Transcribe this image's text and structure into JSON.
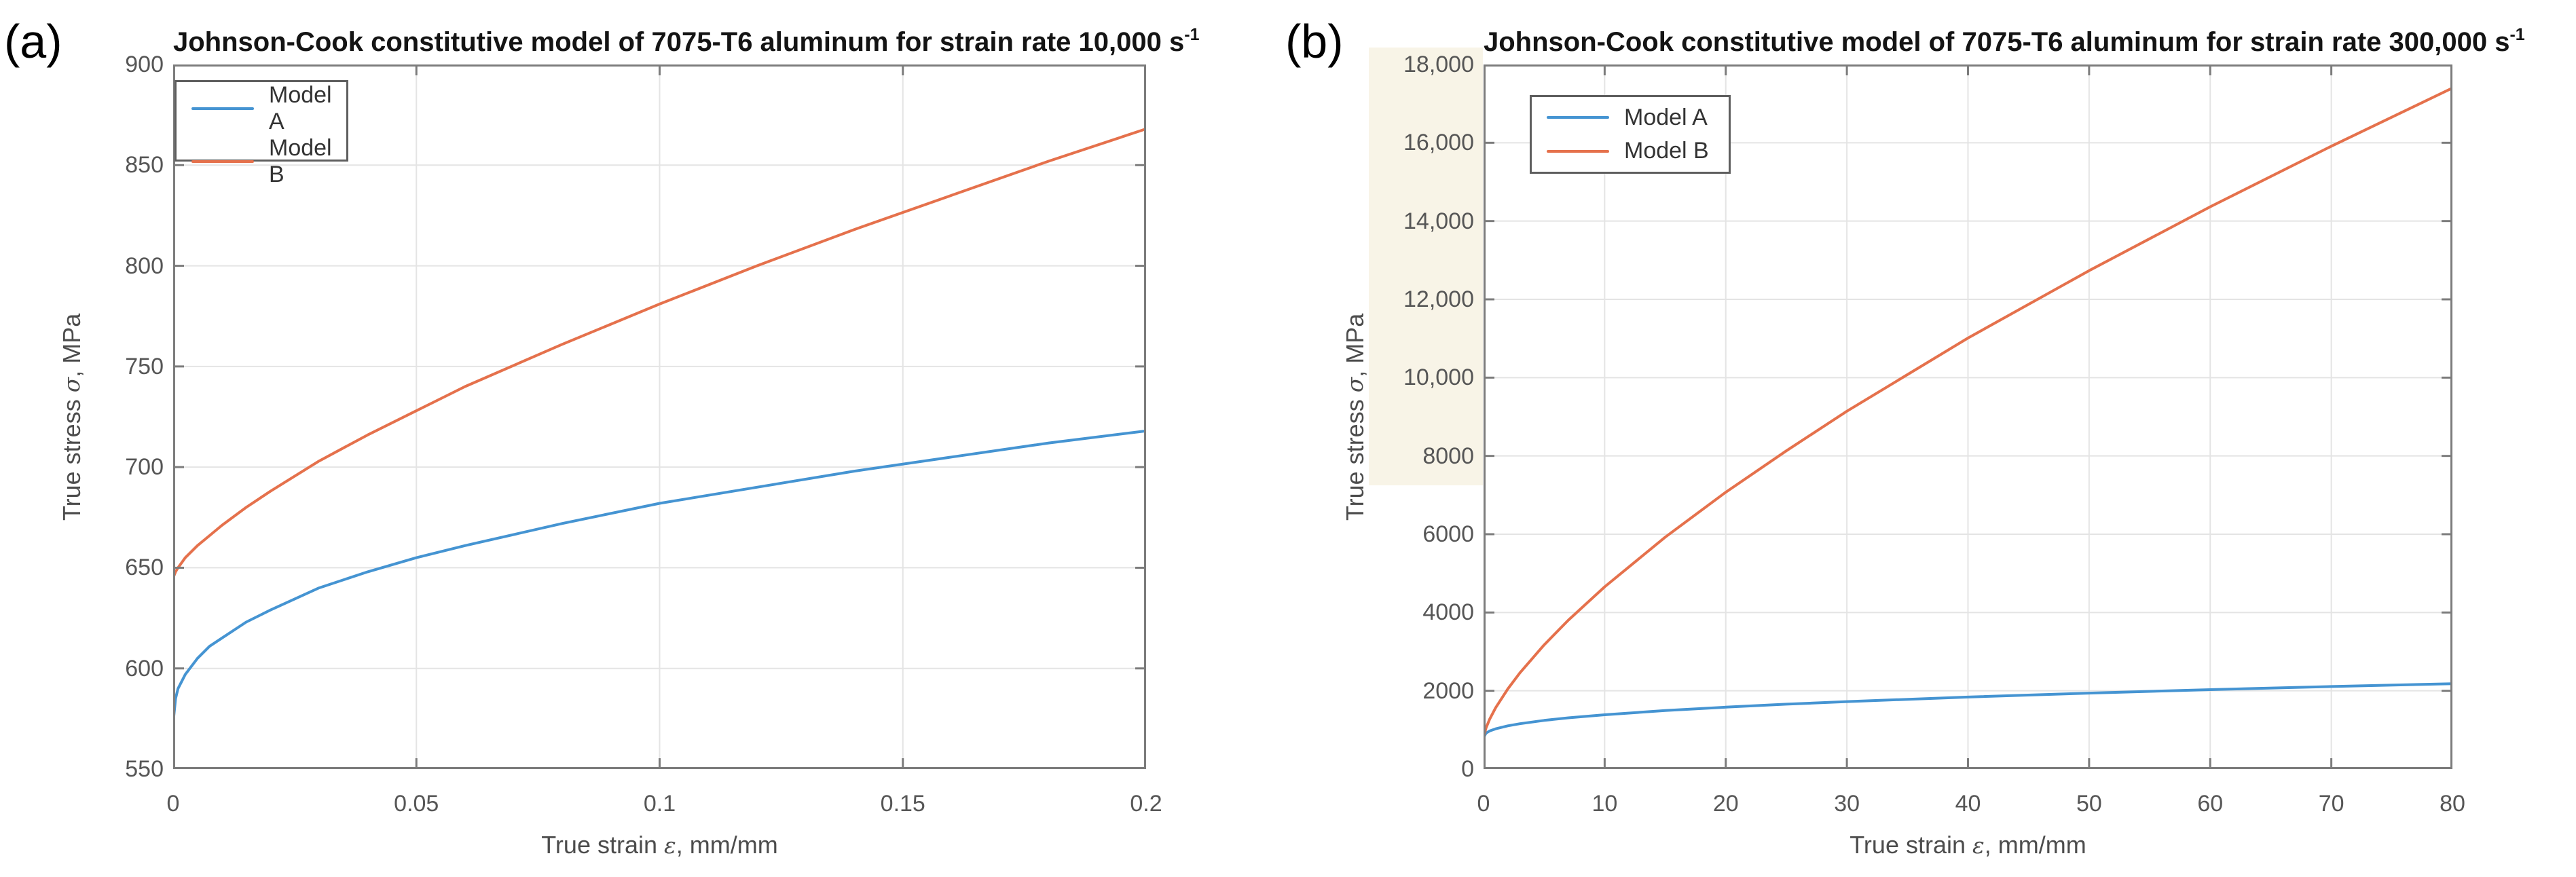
{
  "figure": {
    "panel_a_tag": "(a)",
    "panel_b_tag": "(b)"
  },
  "colors": {
    "model_a_line": "#4594d2",
    "model_b_line": "#e5714c",
    "grid": "#e4e4e4",
    "axis": "#7c7c7c",
    "tick_text": "#565656",
    "title_text": "#141414"
  },
  "chart_data": [
    {
      "id": "a",
      "type": "line",
      "title_text": "Johnson-Cook constitutive model of 7075-T6 aluminum for strain rate 10,000 s",
      "title_sup": "-1",
      "title_full": "Johnson-Cook constitutive model of 7075-T6 aluminum for strain rate 10,000 s^-1",
      "xlabel_pre": "True strain ",
      "xlabel_sym": "ε",
      "xlabel_post": ", mm/mm",
      "ylabel_pre": "True stress ",
      "ylabel_sym": "σ",
      "ylabel_post": ", MPa",
      "xlim": [
        0,
        0.2
      ],
      "ylim": [
        550,
        900
      ],
      "xticks": [
        0,
        0.05,
        0.1,
        0.15,
        0.2
      ],
      "xtick_labels": [
        "0",
        "0.05",
        "0.1",
        "0.15",
        "0.2"
      ],
      "yticks": [
        550,
        600,
        650,
        700,
        750,
        800,
        850,
        900
      ],
      "ytick_labels": [
        "550",
        "600",
        "650",
        "700",
        "750",
        "800",
        "850",
        "900"
      ],
      "grid": true,
      "legend_position": "upper-left",
      "legend_entries": [
        "Model A",
        "Model B"
      ],
      "series": [
        {
          "name": "Model A",
          "color": "#4594d2",
          "x": [
            0,
            0.0005,
            0.001,
            0.0025,
            0.005,
            0.0075,
            0.01,
            0.015,
            0.02,
            0.03,
            0.04,
            0.05,
            0.06,
            0.08,
            0.1,
            0.12,
            0.14,
            0.16,
            0.18,
            0.2
          ],
          "y": [
            573,
            585,
            590,
            597,
            605,
            611,
            615,
            623,
            629,
            640,
            648,
            655,
            661,
            672,
            682,
            690,
            698,
            705,
            712,
            718
          ]
        },
        {
          "name": "Model B",
          "color": "#e5714c",
          "x": [
            0,
            0.0005,
            0.001,
            0.0025,
            0.005,
            0.0075,
            0.01,
            0.015,
            0.02,
            0.03,
            0.04,
            0.05,
            0.06,
            0.08,
            0.1,
            0.12,
            0.14,
            0.16,
            0.18,
            0.2
          ],
          "y": [
            645,
            648,
            650,
            655,
            661,
            666,
            671,
            680,
            688,
            703,
            716,
            728,
            740,
            761,
            781,
            800,
            818,
            835,
            852,
            868
          ]
        }
      ]
    },
    {
      "id": "b",
      "type": "line",
      "title_text": "Johnson-Cook constitutive model of 7075-T6 aluminum for strain rate 300,000 s",
      "title_sup": "-1",
      "title_full": "Johnson-Cook constitutive model of 7075-T6 aluminum for strain rate 300,000 s^-1",
      "xlabel_pre": "True strain ",
      "xlabel_sym": "ε",
      "xlabel_post": ", mm/mm",
      "ylabel_pre": "True stress ",
      "ylabel_sym": "σ",
      "ylabel_post": ", MPa",
      "xlim": [
        0,
        80
      ],
      "ylim": [
        0,
        18000
      ],
      "xticks": [
        0,
        10,
        20,
        30,
        40,
        50,
        60,
        70,
        80
      ],
      "xtick_labels": [
        "0",
        "10",
        "20",
        "30",
        "40",
        "50",
        "60",
        "70",
        "80"
      ],
      "yticks": [
        0,
        2000,
        4000,
        6000,
        8000,
        10000,
        12000,
        14000,
        16000,
        18000
      ],
      "ytick_labels": [
        "0",
        "2000",
        "4000",
        "6000",
        "8000",
        "10,000",
        "12,000",
        "14,000",
        "16,000",
        "18,000"
      ],
      "grid": true,
      "legend_position": "upper-left",
      "legend_entries": [
        "Model A",
        "Model B"
      ],
      "series": [
        {
          "name": "Model A",
          "color": "#4594d2",
          "x": [
            0,
            0.2,
            0.5,
            1,
            2,
            3,
            5,
            7,
            10,
            15,
            20,
            25,
            30,
            40,
            50,
            60,
            70,
            80
          ],
          "y": [
            800,
            918,
            972,
            1029,
            1104,
            1159,
            1243,
            1309,
            1388,
            1495,
            1582,
            1657,
            1723,
            1840,
            1940,
            2029,
            2109,
            2182
          ]
        },
        {
          "name": "Model B",
          "color": "#e5714c",
          "x": [
            0,
            0.2,
            0.5,
            1,
            2,
            3,
            5,
            7,
            10,
            15,
            20,
            25,
            30,
            40,
            50,
            60,
            70,
            80
          ],
          "y": [
            800,
            1047,
            1271,
            1566,
            2046,
            2457,
            3172,
            3804,
            4656,
            5926,
            7074,
            8130,
            9142,
            11011,
            12734,
            14366,
            15913,
            17399
          ]
        }
      ]
    }
  ]
}
